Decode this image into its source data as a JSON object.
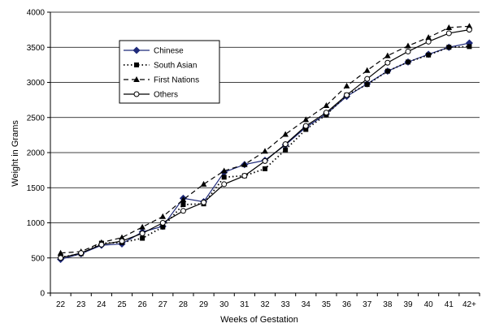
{
  "chart_data": {
    "type": "line",
    "title": "",
    "xlabel": "Weeks of Gestation",
    "ylabel": "Weight in Grams",
    "categories": [
      "22",
      "23",
      "24",
      "25",
      "26",
      "27",
      "28",
      "29",
      "30",
      "31",
      "32",
      "33",
      "34",
      "35",
      "36",
      "37",
      "38",
      "39",
      "40",
      "41",
      "42+"
    ],
    "ylim": [
      0,
      4000
    ],
    "yticks": [
      0,
      500,
      1000,
      1500,
      2000,
      2500,
      3000,
      3500,
      4000
    ],
    "grid": "horizontal",
    "legend_position": "upper-left",
    "series": [
      {
        "name": "Chinese",
        "style": "solid",
        "marker": "diamond",
        "color": "#1f2a7a",
        "values": [
          480,
          560,
          680,
          700,
          870,
          950,
          1350,
          1300,
          1720,
          1830,
          1890,
          2110,
          2360,
          2550,
          2800,
          2980,
          3160,
          3290,
          3400,
          3500,
          3560
        ]
      },
      {
        "name": "South Asian",
        "style": "dotted",
        "marker": "square",
        "color": "#000000",
        "values": [
          510,
          560,
          710,
          720,
          780,
          940,
          1260,
          1270,
          1650,
          1670,
          1770,
          2040,
          2330,
          2540,
          2820,
          2970,
          3160,
          3290,
          3390,
          3500,
          3510
        ]
      },
      {
        "name": "First Nations",
        "style": "dashed",
        "marker": "triangle",
        "color": "#000000",
        "values": [
          570,
          590,
          720,
          790,
          940,
          1090,
          1330,
          1550,
          1740,
          1830,
          2020,
          2260,
          2470,
          2670,
          2950,
          3170,
          3380,
          3520,
          3640,
          3780,
          3800
        ]
      },
      {
        "name": "Others",
        "style": "solid",
        "marker": "circle-open",
        "color": "#000000",
        "values": [
          500,
          570,
          690,
          740,
          850,
          1000,
          1170,
          1290,
          1550,
          1670,
          1880,
          2120,
          2380,
          2570,
          2820,
          3050,
          3280,
          3440,
          3580,
          3700,
          3750
        ]
      }
    ]
  }
}
